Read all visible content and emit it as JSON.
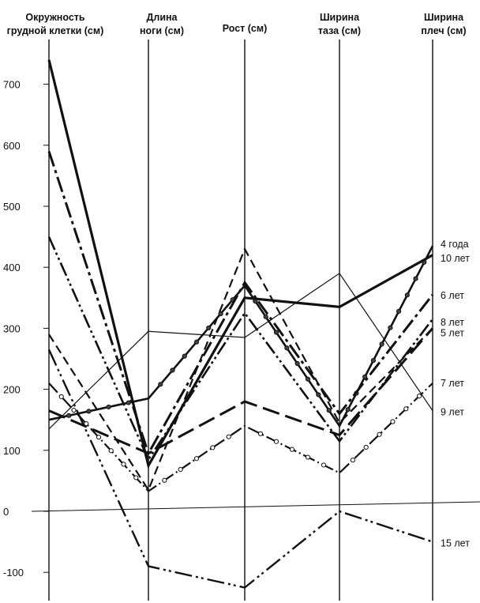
{
  "chart_data": {
    "type": "line",
    "chart_kind": "parallel-coordinates",
    "categories": [
      [
        "Окружность",
        "грудной клетки (см)"
      ],
      [
        "Длина",
        "ноги (см)"
      ],
      [
        "Рост (см)"
      ],
      [
        "Ширина",
        "таза (см)"
      ],
      [
        "Ширина",
        "плеч (см)"
      ]
    ],
    "yticks": [
      700,
      600,
      500,
      400,
      300,
      200,
      100,
      0,
      -100
    ],
    "ylim": [
      -140,
      740
    ],
    "grid": false,
    "series": [
      {
        "name": "4 года",
        "values": [
          150,
          185,
          370,
          140,
          435
        ],
        "style": "dots",
        "width": 2.6
      },
      {
        "name": "10 лет",
        "values": [
          740,
          75,
          350,
          335,
          420
        ],
        "style": "solid",
        "width": 3.2
      },
      {
        "name": "6 лет",
        "values": [
          590,
          95,
          375,
          160,
          355
        ],
        "style": "dashdot",
        "width": 3.0
      },
      {
        "name": "8 лет",
        "values": [
          135,
          295,
          285,
          390,
          165
        ],
        "style": "thin",
        "width": 1.2
      },
      {
        "name": "5 лет",
        "values": [
          450,
          85,
          325,
          115,
          315
        ],
        "style": "dashdotdot",
        "width": 2.6
      },
      {
        "name": "7 лет",
        "values": [
          290,
          35,
          430,
          145,
          300
        ],
        "style": "dashed",
        "width": 2.2
      },
      {
        "name": "9 лет",
        "values": [
          210,
          33,
          140,
          63,
          210
        ],
        "style": "openDots",
        "width": 2.2
      },
      {
        "name": "15 лет",
        "values": [
          265,
          -90,
          -125,
          0,
          -50
        ],
        "style": "longdash2dot",
        "width": 2.4
      },
      {
        "name": "",
        "values": [
          165,
          95,
          180,
          125,
          300
        ],
        "style": "longdash",
        "width": 3.0
      }
    ],
    "label_rows": [
      {
        "text": "4 года",
        "value": 435
      },
      {
        "text": "10 лет",
        "value": 420
      },
      {
        "text": "6 лет",
        "value": 355
      },
      {
        "text": "8 лет",
        "value": 315
      },
      {
        "text": "5 лет",
        "value": 300
      },
      {
        "text": "7 лет",
        "value": 210
      },
      {
        "text": "9 лет",
        "value": 165
      },
      {
        "text": "15 лет",
        "value": -55
      }
    ]
  }
}
